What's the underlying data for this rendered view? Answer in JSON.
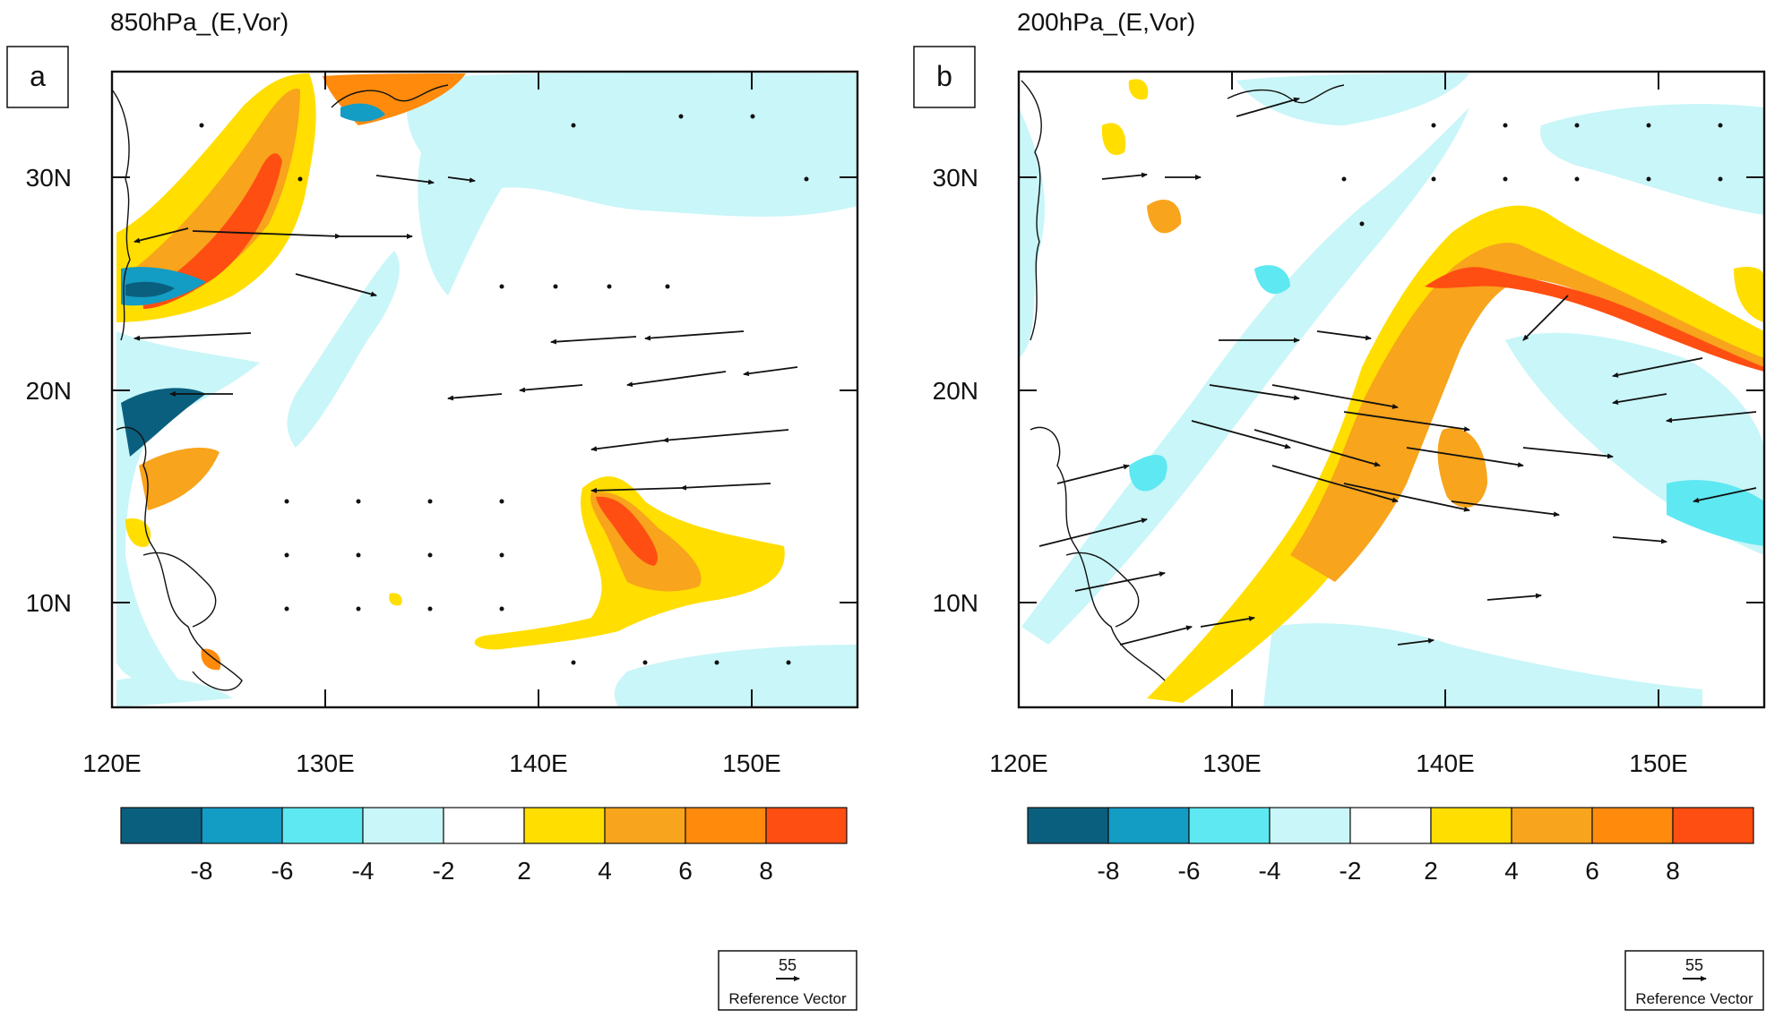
{
  "panels": [
    {
      "id": "a",
      "title": "850hPa_(E,Vor)",
      "letter": "a",
      "lat_labels": [
        "30N",
        "20N",
        "10N"
      ],
      "lon_labels": [
        "120E",
        "130E",
        "140E",
        "150E"
      ],
      "ref_vector": {
        "magnitude": "55",
        "label": "Reference Vector"
      }
    },
    {
      "id": "b",
      "title": "200hPa_(E,Vor)",
      "letter": "b",
      "lat_labels": [
        "30N",
        "20N",
        "10N"
      ],
      "lon_labels": [
        "120E",
        "130E",
        "140E",
        "150E"
      ],
      "ref_vector": {
        "magnitude": "55",
        "label": "Reference Vector"
      }
    }
  ],
  "colorbar": {
    "colors": [
      "#0b5f7e",
      "#139cc4",
      "#5ee8f2",
      "#c9f6f8",
      "#ffffff",
      "#ffde00",
      "#f8a41c",
      "#ff8a0c",
      "#ff4e12"
    ],
    "labels": [
      "-8",
      "-6",
      "-4",
      "-2",
      "2",
      "4",
      "6",
      "8"
    ]
  },
  "map_extent": {
    "lon": [
      120,
      155
    ],
    "lat": [
      5,
      35
    ]
  }
}
